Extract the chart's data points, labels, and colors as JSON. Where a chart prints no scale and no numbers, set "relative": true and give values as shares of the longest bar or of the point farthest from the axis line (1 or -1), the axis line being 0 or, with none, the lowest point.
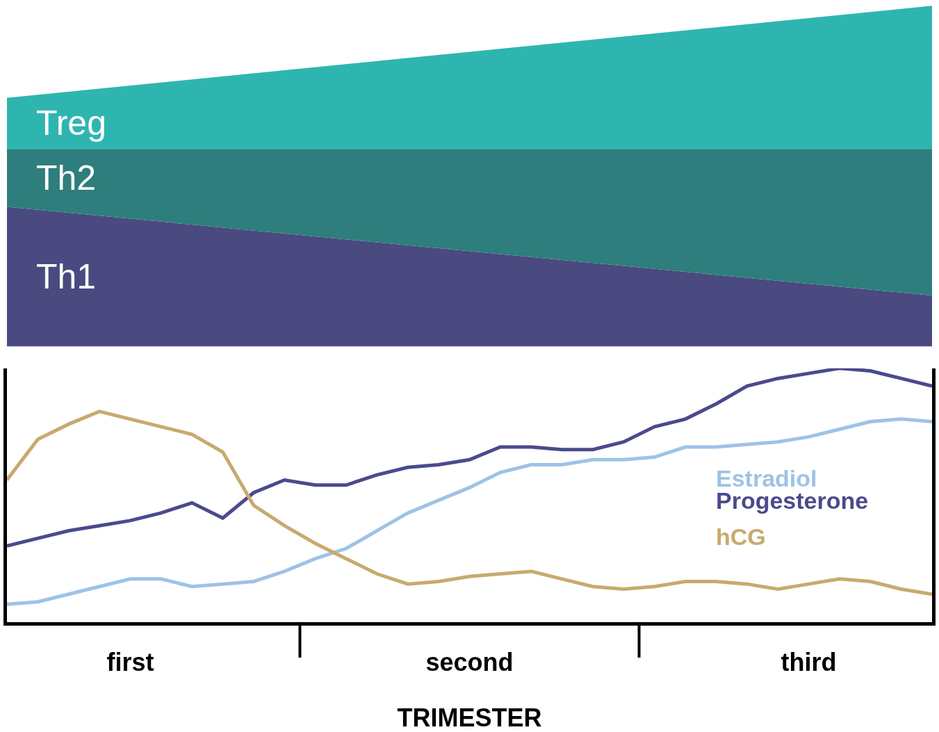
{
  "chart_data": [
    {
      "type": "area",
      "relative": true,
      "stacked": true,
      "categories": [
        null,
        null
      ],
      "legend": false,
      "series": [
        {
          "name": "Th1",
          "color": "#4a4a80",
          "values": [
            0.41,
            0.15
          ]
        },
        {
          "name": "Th2",
          "color": "#2d7e7c",
          "values": [
            0.17,
            0.43
          ]
        },
        {
          "name": "Treg",
          "color": "#2fb5b0",
          "values": [
            0.15,
            0.42
          ]
        }
      ]
    },
    {
      "type": "line",
      "relative": true,
      "xlabel": "TRIMESTER",
      "categories": [
        null,
        null,
        null,
        null,
        "first",
        null,
        null,
        null,
        null,
        null,
        null,
        null,
        null,
        null,
        null,
        "second",
        null,
        null,
        null,
        null,
        null,
        null,
        null,
        null,
        null,
        null,
        "third",
        null,
        null,
        null,
        null
      ],
      "legend": false,
      "marker": "none",
      "line_style": "solid",
      "series": [
        {
          "name": "Estradiol",
          "color": "#9dc3e6",
          "values": [
            0.07,
            0.08,
            0.11,
            0.14,
            0.17,
            0.17,
            0.14,
            0.15,
            0.16,
            0.2,
            0.25,
            0.29,
            0.36,
            0.43,
            0.48,
            0.53,
            0.59,
            0.62,
            0.62,
            0.64,
            0.64,
            0.65,
            0.69,
            0.69,
            0.7,
            0.71,
            0.73,
            0.76,
            0.79,
            0.8,
            0.79
          ]
        },
        {
          "name": "Progesterone",
          "color": "#4b4a8c",
          "values": [
            0.3,
            0.33,
            0.36,
            0.38,
            0.4,
            0.43,
            0.47,
            0.41,
            0.51,
            0.56,
            0.54,
            0.54,
            0.58,
            0.61,
            0.62,
            0.64,
            0.69,
            0.69,
            0.68,
            0.68,
            0.71,
            0.77,
            0.8,
            0.86,
            0.93,
            0.96,
            0.98,
            1.0,
            0.99,
            0.96,
            0.93
          ]
        },
        {
          "name": "hCG",
          "color": "#c8aa6e",
          "values": [
            0.56,
            0.72,
            0.78,
            0.83,
            0.8,
            0.77,
            0.74,
            0.67,
            0.46,
            0.38,
            0.31,
            0.25,
            0.19,
            0.15,
            0.16,
            0.18,
            0.19,
            0.2,
            0.17,
            0.14,
            0.13,
            0.14,
            0.16,
            0.16,
            0.15,
            0.13,
            0.15,
            0.17,
            0.16,
            0.13,
            0.11
          ]
        }
      ]
    }
  ]
}
